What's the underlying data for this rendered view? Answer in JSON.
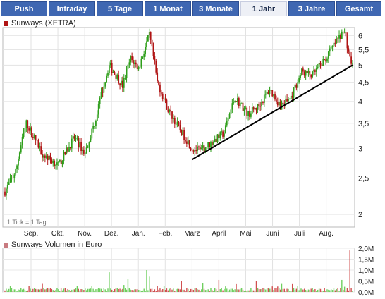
{
  "tabs": [
    {
      "label": "Push",
      "active": false
    },
    {
      "label": "Intraday",
      "active": false
    },
    {
      "label": "5 Tage",
      "active": false
    },
    {
      "label": "1 Monat",
      "active": false
    },
    {
      "label": "3 Monate",
      "active": false
    },
    {
      "label": "1 Jahr",
      "active": true
    },
    {
      "label": "3 Jahre",
      "active": false
    },
    {
      "label": "Gesamt",
      "active": false
    }
  ],
  "colors": {
    "up": "#2e9e1a",
    "down": "#b01414",
    "tab": "#3f67b2",
    "trendline": "#000000",
    "marker_price": "#b01414",
    "marker_volume": "#c87a80"
  },
  "chart_data": [
    {
      "type": "candlestick",
      "title": "Sunways (XETRA)",
      "scale": "log",
      "ylim": [
        1.85,
        6.3
      ],
      "yticks": [
        "2",
        "2,5",
        "3",
        "3,5",
        "4",
        "4,5",
        "5",
        "5,5",
        "6"
      ],
      "ytick_values": [
        2,
        2.5,
        3,
        3.5,
        4,
        4.5,
        5,
        5.5,
        6
      ],
      "x_months": [
        "Sep.",
        "Okt.",
        "Nov.",
        "Dez.",
        "Jan.",
        "Feb.",
        "März",
        "April",
        "Mai",
        "Juni",
        "Juli",
        "Aug."
      ],
      "note": "1 Tick = 1 Tag",
      "grid": true,
      "anchors": [
        [
          0,
          2.3
        ],
        [
          8,
          2.6
        ],
        [
          16,
          3.5
        ],
        [
          22,
          3.2
        ],
        [
          28,
          2.9
        ],
        [
          40,
          2.7
        ],
        [
          52,
          3.2
        ],
        [
          60,
          2.9
        ],
        [
          68,
          3.6
        ],
        [
          78,
          5.0
        ],
        [
          88,
          4.4
        ],
        [
          94,
          5.2
        ],
        [
          100,
          4.9
        ],
        [
          108,
          6.0
        ],
        [
          114,
          4.5
        ],
        [
          122,
          3.8
        ],
        [
          130,
          3.4
        ],
        [
          140,
          3.0
        ],
        [
          146,
          2.95
        ],
        [
          154,
          3.1
        ],
        [
          164,
          3.3
        ],
        [
          172,
          4.1
        ],
        [
          182,
          3.7
        ],
        [
          190,
          3.9
        ],
        [
          198,
          4.3
        ],
        [
          206,
          3.9
        ],
        [
          214,
          4.1
        ],
        [
          222,
          4.8
        ],
        [
          230,
          4.7
        ],
        [
          240,
          5.2
        ],
        [
          248,
          5.8
        ],
        [
          254,
          6.15
        ],
        [
          258,
          5.2
        ],
        [
          260,
          5.0
        ]
      ],
      "trendline": {
        "start": [
          140,
          2.8
        ],
        "end": [
          260,
          5.0
        ]
      }
    },
    {
      "type": "bar",
      "title": "Sunways Volumen in Euro",
      "ylim": [
        0,
        2.0
      ],
      "yticks": [
        "0,0M",
        "0,5M",
        "1,0M",
        "1,5M",
        "2,0M"
      ],
      "ytick_values": [
        0,
        0.5,
        1.0,
        1.5,
        2.0
      ],
      "spikes": [
        [
          78,
          0.9
        ],
        [
          92,
          0.6
        ],
        [
          106,
          1.0
        ],
        [
          108,
          0.7
        ],
        [
          132,
          0.5
        ],
        [
          160,
          0.55
        ],
        [
          188,
          0.5
        ],
        [
          252,
          0.55
        ],
        [
          258,
          1.9
        ]
      ]
    }
  ]
}
